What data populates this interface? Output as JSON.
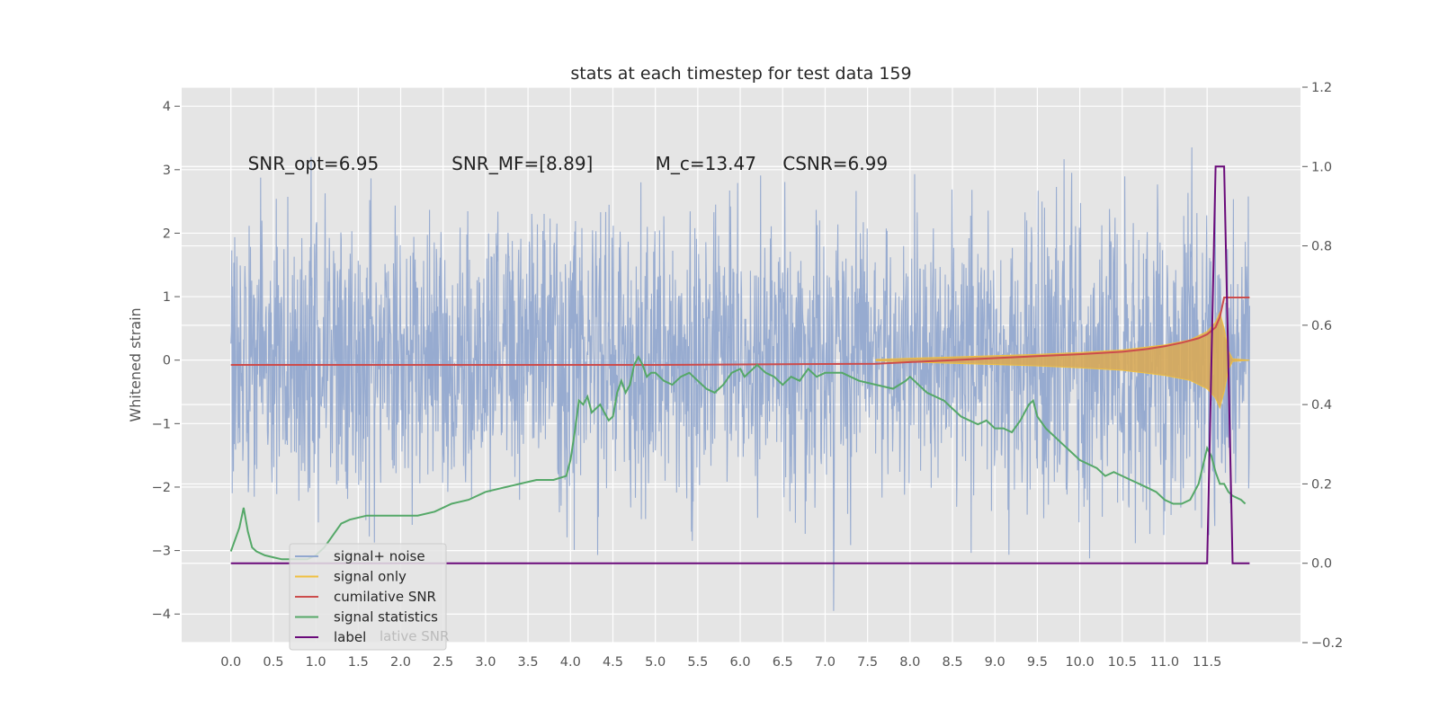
{
  "chart_data": {
    "type": "line",
    "title": "stats at each timestep for test data 159",
    "xlabel": "",
    "ylabel": "Whitened strain",
    "xlim": [
      -0.58,
      12.6
    ],
    "ylim": [
      -4.45,
      4.3
    ],
    "y2lim": [
      -0.2,
      1.2
    ],
    "xticks": [
      "0.0",
      "0.5",
      "1.0",
      "1.5",
      "2.0",
      "2.5",
      "3.0",
      "3.5",
      "4.0",
      "4.5",
      "5.0",
      "5.5",
      "6.0",
      "6.5",
      "7.0",
      "7.5",
      "8.0",
      "8.5",
      "9.0",
      "9.5",
      "10.0",
      "10.5",
      "11.0",
      "11.5"
    ],
    "yticks": [
      "4",
      "3",
      "2",
      "1",
      "0",
      "−1",
      "−2",
      "−3",
      "−4"
    ],
    "y2ticks": [
      "1.2",
      "1.0",
      "0.8",
      "0.6",
      "0.4",
      "0.2",
      "0.0",
      "−0.2"
    ],
    "grid": true,
    "legend": "lower-left",
    "annotations": [
      {
        "text": "SNR_opt=6.95",
        "x": 0.2,
        "y": 3.1
      },
      {
        "text": "SNR_MF=[8.89]",
        "x": 2.6,
        "y": 3.1
      },
      {
        "text": "M_c=13.47",
        "x": 5.0,
        "y": 3.1
      },
      {
        "text": "CSNR=6.99",
        "x": 6.5,
        "y": 3.1
      }
    ],
    "series": [
      {
        "name": "signal+ noise",
        "axis": "left",
        "color": "#92a8cf",
        "note": "noise band approx ±1.8 with spikes to ±4"
      },
      {
        "name": "signal only",
        "axis": "left",
        "color": "#f0c040",
        "envelope_x": [
          7.6,
          8.0,
          8.5,
          9.0,
          9.5,
          10.0,
          10.5,
          11.0,
          11.3,
          11.5,
          11.6,
          11.65,
          11.7,
          11.75,
          11.8,
          12.0
        ],
        "envelope_y": [
          0.01,
          0.03,
          0.05,
          0.07,
          0.09,
          0.12,
          0.16,
          0.24,
          0.32,
          0.45,
          0.6,
          0.75,
          0.5,
          0.15,
          0.02,
          0.0
        ]
      },
      {
        "name": "cumilative SNR",
        "axis": "right",
        "color": "#cc4c4c",
        "x": [
          0.0,
          5.0,
          7.6,
          8.0,
          8.5,
          9.0,
          9.5,
          10.0,
          10.5,
          10.8,
          11.0,
          11.2,
          11.4,
          11.5,
          11.6,
          11.65,
          11.7,
          11.75,
          12.0
        ],
        "y": [
          0.5,
          0.5,
          0.503,
          0.507,
          0.512,
          0.517,
          0.522,
          0.527,
          0.533,
          0.54,
          0.547,
          0.556,
          0.567,
          0.577,
          0.595,
          0.62,
          0.67,
          0.67,
          0.67
        ]
      },
      {
        "name": "signal statistics",
        "axis": "right",
        "color": "#55a868",
        "x": [
          0.0,
          0.05,
          0.1,
          0.15,
          0.2,
          0.25,
          0.3,
          0.4,
          0.5,
          0.6,
          0.7,
          0.8,
          0.9,
          1.0,
          1.1,
          1.2,
          1.3,
          1.4,
          1.6,
          1.8,
          2.0,
          2.2,
          2.4,
          2.6,
          2.8,
          3.0,
          3.2,
          3.4,
          3.6,
          3.8,
          3.95,
          4.0,
          4.05,
          4.1,
          4.15,
          4.2,
          4.25,
          4.3,
          4.35,
          4.4,
          4.45,
          4.5,
          4.55,
          4.6,
          4.65,
          4.7,
          4.75,
          4.8,
          4.85,
          4.9,
          4.95,
          5.0,
          5.1,
          5.2,
          5.3,
          5.4,
          5.5,
          5.6,
          5.7,
          5.8,
          5.9,
          6.0,
          6.05,
          6.1,
          6.2,
          6.3,
          6.4,
          6.5,
          6.6,
          6.7,
          6.8,
          6.9,
          7.0,
          7.2,
          7.4,
          7.6,
          7.8,
          7.95,
          8.0,
          8.1,
          8.2,
          8.3,
          8.4,
          8.5,
          8.6,
          8.7,
          8.8,
          8.9,
          9.0,
          9.1,
          9.2,
          9.3,
          9.4,
          9.45,
          9.5,
          9.6,
          9.7,
          9.8,
          9.9,
          10.0,
          10.1,
          10.2,
          10.3,
          10.4,
          10.5,
          10.6,
          10.7,
          10.8,
          10.9,
          11.0,
          11.1,
          11.2,
          11.3,
          11.4,
          11.5,
          11.55,
          11.6,
          11.65,
          11.7,
          11.75,
          11.8,
          11.9,
          11.95
        ],
        "y": [
          0.03,
          0.06,
          0.09,
          0.14,
          0.08,
          0.04,
          0.03,
          0.02,
          0.015,
          0.01,
          0.01,
          0.01,
          0.01,
          0.02,
          0.04,
          0.07,
          0.1,
          0.11,
          0.12,
          0.12,
          0.12,
          0.12,
          0.13,
          0.15,
          0.16,
          0.18,
          0.19,
          0.2,
          0.21,
          0.21,
          0.22,
          0.26,
          0.33,
          0.41,
          0.4,
          0.42,
          0.38,
          0.39,
          0.4,
          0.38,
          0.36,
          0.37,
          0.43,
          0.46,
          0.43,
          0.45,
          0.5,
          0.52,
          0.5,
          0.47,
          0.48,
          0.48,
          0.46,
          0.45,
          0.47,
          0.48,
          0.46,
          0.44,
          0.43,
          0.45,
          0.48,
          0.49,
          0.47,
          0.48,
          0.5,
          0.48,
          0.47,
          0.45,
          0.47,
          0.46,
          0.49,
          0.47,
          0.48,
          0.48,
          0.46,
          0.45,
          0.44,
          0.46,
          0.47,
          0.45,
          0.43,
          0.42,
          0.41,
          0.39,
          0.37,
          0.36,
          0.35,
          0.36,
          0.34,
          0.34,
          0.33,
          0.36,
          0.4,
          0.41,
          0.37,
          0.34,
          0.32,
          0.3,
          0.28,
          0.26,
          0.25,
          0.24,
          0.22,
          0.23,
          0.22,
          0.21,
          0.2,
          0.19,
          0.18,
          0.16,
          0.15,
          0.15,
          0.16,
          0.2,
          0.29,
          0.27,
          0.23,
          0.2,
          0.2,
          0.18,
          0.17,
          0.16,
          0.15
        ]
      },
      {
        "name": "label",
        "axis": "right",
        "color": "#6a0a7a",
        "x": [
          0.0,
          11.5,
          11.6,
          11.7,
          11.8,
          12.0
        ],
        "y": [
          0.0,
          0.0,
          1.0,
          1.0,
          0.0,
          0.0
        ]
      }
    ]
  },
  "legend_items": [
    {
      "label": "signal+ noise",
      "color": "#92a8cf"
    },
    {
      "label": "signal only",
      "color": "#f0c040"
    },
    {
      "label": "cumilative SNR",
      "color": "#cc4c4c"
    },
    {
      "label": "signal statistics",
      "color": "#55a868"
    },
    {
      "label": "label",
      "color": "#6a0a7a"
    }
  ],
  "legend_ghost": "lative SNR"
}
